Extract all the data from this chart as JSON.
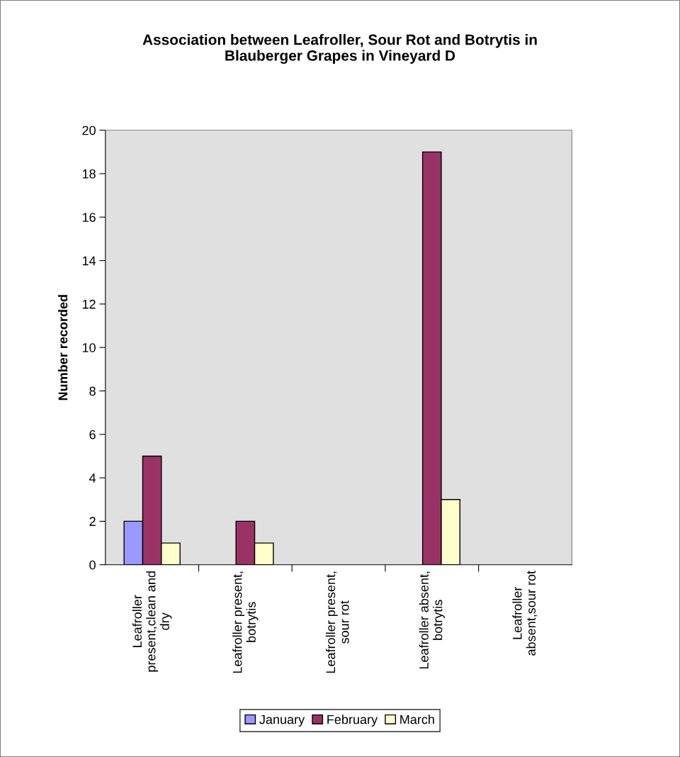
{
  "chart_data": {
    "type": "bar",
    "title": "Association between Leafroller, Sour Rot and Botrytis in\nBlauberger Grapes in Vineyard D",
    "ylabel": "Number recorded",
    "categories": [
      "Leafroller\npresent,clean and\ndry",
      "Leafroller present,\nbotrytis",
      "Leafroller present,\nsour rot",
      "Leafroller absent,\nbotrytis",
      "Leafroller\nabsent,sour rot"
    ],
    "series": [
      {
        "name": "January",
        "color": "#9999ff",
        "values": [
          2,
          null,
          null,
          null,
          null
        ]
      },
      {
        "name": "February",
        "color": "#993366",
        "values": [
          5,
          2,
          null,
          19,
          null
        ]
      },
      {
        "name": "March",
        "color": "#ffffcc",
        "values": [
          1,
          1,
          null,
          3,
          null
        ]
      }
    ],
    "ylim": [
      0,
      20
    ],
    "yticks": [
      0,
      2,
      4,
      6,
      8,
      10,
      12,
      14,
      16,
      18,
      20
    ],
    "grid": false,
    "legend": "bottom"
  }
}
